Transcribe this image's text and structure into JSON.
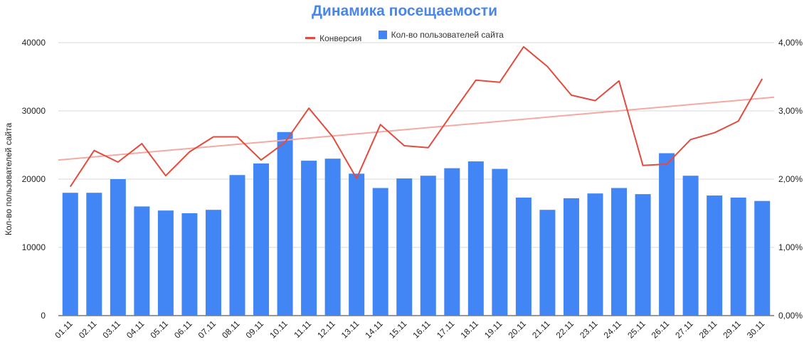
{
  "chart_data": {
    "type": "bar",
    "title": "Динамика посещаемости",
    "ylabel_left": "Кол-во пользователей сайта",
    "legend_position": "top-center",
    "legend": [
      "Конверсия",
      "Кол-во пользователей сайта"
    ],
    "categories": [
      "01.11",
      "02.11",
      "03.11",
      "04.11",
      "05.11",
      "06.11",
      "07.11",
      "08.11",
      "09.11",
      "10.11",
      "11.11",
      "12.11",
      "13.11",
      "14.11",
      "15.11",
      "16.11",
      "17.11",
      "18.11",
      "19.11",
      "20.11",
      "21.11",
      "22.11",
      "23.11",
      "24.11",
      "25.11",
      "26.11",
      "27.11",
      "28.11",
      "29.11",
      "30.11"
    ],
    "left_axis": {
      "min": 0,
      "max": 40000,
      "ticks": [
        "0",
        "10000",
        "20000",
        "30000",
        "40000"
      ]
    },
    "right_axis": {
      "min": 0,
      "max": 0.04,
      "ticks": [
        "0,00%",
        "1,00%",
        "2,00%",
        "3,00%",
        "4,00%"
      ]
    },
    "grid": true,
    "series": [
      {
        "name": "Кол-во пользователей сайта",
        "type": "bar",
        "axis": "left",
        "color": "#4285f4",
        "values": [
          18000,
          18000,
          20000,
          16000,
          15400,
          15000,
          15500,
          20600,
          22300,
          26900,
          22700,
          23000,
          20800,
          18700,
          20100,
          20500,
          21600,
          22600,
          21500,
          17300,
          15500,
          17200,
          17900,
          18700,
          17800,
          23800,
          20500,
          17600,
          17300,
          16800
        ]
      },
      {
        "name": "Конверсия",
        "type": "line",
        "axis": "right",
        "color": "#e24c3f",
        "values": [
          0.0189,
          0.0242,
          0.0225,
          0.0252,
          0.0205,
          0.024,
          0.0262,
          0.0262,
          0.0228,
          0.0254,
          0.0304,
          0.0262,
          0.0201,
          0.028,
          0.0249,
          0.0246,
          0.0296,
          0.0345,
          0.0342,
          0.0394,
          0.0365,
          0.0323,
          0.0315,
          0.0344,
          0.022,
          0.0222,
          0.0258,
          0.0268,
          0.0285,
          0.0347
        ]
      },
      {
        "type": "line",
        "trendline": true,
        "axis": "right",
        "color": "#f4aaa3",
        "values_start_end": [
          0.0228,
          0.032
        ]
      }
    ]
  }
}
